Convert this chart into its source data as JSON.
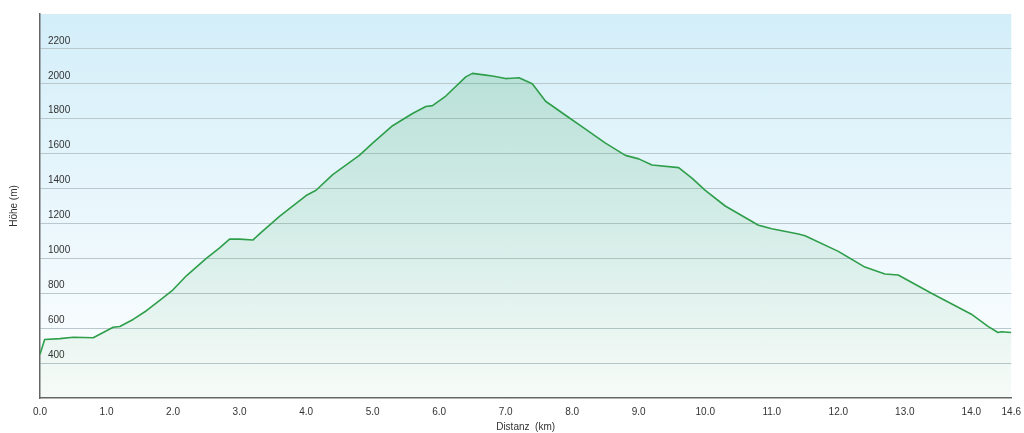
{
  "chart_data": {
    "type": "area",
    "xlabel": "Distanz  (km)",
    "ylabel": "Höhe (m)",
    "x": [
      0,
      0.07,
      0.3,
      0.5,
      0.8,
      0.9,
      1.0,
      1.1,
      1.2,
      1.4,
      1.6,
      1.8,
      2.0,
      2.2,
      2.5,
      2.7,
      2.85,
      3.0,
      3.2,
      3.3,
      3.6,
      4.0,
      4.15,
      4.4,
      4.8,
      5.0,
      5.3,
      5.6,
      5.8,
      5.9,
      6.1,
      6.4,
      6.5,
      6.7,
      6.8,
      7.0,
      7.2,
      7.4,
      7.6,
      7.9,
      8.2,
      8.5,
      8.8,
      9.0,
      9.2,
      9.6,
      9.8,
      10.0,
      10.3,
      10.8,
      11.0,
      11.4,
      11.5,
      12.0,
      12.4,
      12.7,
      12.9,
      13.4,
      13.6,
      14.0,
      14.25,
      14.4,
      14.45,
      14.6
    ],
    "series": [
      {
        "color": "#2e9e4a",
        "values": [
          450,
          535,
          540,
          548,
          545,
          565,
          585,
          605,
          610,
          650,
          700,
          760,
          820,
          900,
          1000,
          1060,
          1110,
          1110,
          1105,
          1140,
          1240,
          1360,
          1390,
          1480,
          1590,
          1660,
          1760,
          1830,
          1870,
          1875,
          1930,
          2040,
          2060,
          2050,
          2045,
          2030,
          2035,
          2000,
          1900,
          1820,
          1740,
          1660,
          1590,
          1570,
          1535,
          1520,
          1460,
          1390,
          1300,
          1190,
          1170,
          1140,
          1130,
          1040,
          950,
          910,
          905,
          800,
          760,
          680,
          610,
          575,
          580,
          575
        ]
      }
    ],
    "xlim": [
      0,
      14.6
    ],
    "xticks": [
      {
        "value": 0,
        "label": "0.0"
      },
      {
        "value": 1,
        "label": "1.0"
      },
      {
        "value": 2,
        "label": "2.0"
      },
      {
        "value": 3,
        "label": "3.0"
      },
      {
        "value": 4,
        "label": "4.0"
      },
      {
        "value": 5,
        "label": "5.0"
      },
      {
        "value": 6,
        "label": "6.0"
      },
      {
        "value": 7,
        "label": "7.0"
      },
      {
        "value": 8,
        "label": "8.0"
      },
      {
        "value": 9,
        "label": "9.0"
      },
      {
        "value": 10,
        "label": "10.0"
      },
      {
        "value": 11,
        "label": "11.0"
      },
      {
        "value": 12,
        "label": "12.0"
      },
      {
        "value": 13,
        "label": "13.0"
      },
      {
        "value": 14,
        "label": "14.0"
      },
      {
        "value": 14.6,
        "label": "14.6"
      }
    ],
    "ylim": [
      200,
      2400
    ],
    "yticks": [
      400,
      600,
      800,
      1000,
      1200,
      1400,
      1600,
      1800,
      2000,
      2200
    ],
    "grid": "y",
    "legend": false,
    "marker": "none",
    "line_style": "solid"
  }
}
